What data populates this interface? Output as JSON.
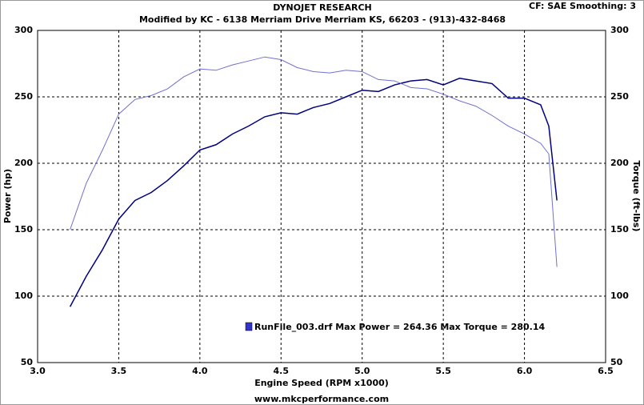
{
  "chart_data": {
    "type": "line",
    "title": "DYNOJET RESEARCH",
    "subtitle": "Modified by KC - 6138 Merriam Drive Merriam KS,  66203 - (913)-432-8468",
    "corner_note": "CF: SAE  Smoothing: 3",
    "x_label": "Engine Speed (RPM x1000)",
    "y_label": "Power (hp)",
    "y2_label": "Torque (ft-lbs)",
    "footer": "www.mkcperformance.com",
    "legend_text": "RunFile_003.drf Max Power = 264.36     Max Torque = 280.14",
    "legend_color": "#3333cc",
    "x": [
      3.2,
      3.3,
      3.4,
      3.5,
      3.6,
      3.7,
      3.8,
      3.9,
      4.0,
      4.1,
      4.2,
      4.3,
      4.4,
      4.5,
      4.6,
      4.7,
      4.8,
      4.9,
      5.0,
      5.1,
      5.2,
      5.3,
      5.4,
      5.5,
      5.6,
      5.7,
      5.8,
      5.9,
      6.0,
      6.1,
      6.15,
      6.2
    ],
    "series": [
      {
        "color": "#000080",
        "values": [
          92,
          115,
          135,
          158,
          172,
          178,
          187,
          198,
          210,
          214,
          222,
          228,
          235,
          238,
          237,
          242,
          245,
          250,
          255,
          254,
          259,
          262,
          263,
          259,
          264,
          262,
          260,
          249,
          249,
          244,
          228,
          172
        ]
      },
      {
        "color": "#7070d0",
        "axis": "y2",
        "values": [
          150,
          185,
          210,
          237,
          248,
          251,
          256,
          265,
          271,
          270,
          274,
          277,
          280,
          278,
          272,
          269,
          268,
          270,
          269,
          263,
          262,
          257,
          256,
          252,
          247,
          243,
          236,
          228,
          222,
          215,
          207,
          122
        ]
      }
    ],
    "xlim": [
      3.0,
      6.5
    ],
    "xticks": [
      {
        "value": 3.0,
        "label": "3.0"
      },
      3.5,
      {
        "value": 4.0,
        "label": "4.0"
      },
      4.5,
      {
        "value": 5.0,
        "label": "5.0"
      },
      5.5,
      {
        "value": 6.0,
        "label": "6.0"
      },
      6.5
    ],
    "ylim": [
      50,
      300
    ],
    "yticks": [
      50,
      100,
      150,
      200,
      250,
      300
    ],
    "y2lim": [
      50,
      300
    ],
    "y2ticks": [
      50,
      100,
      150,
      200,
      250,
      300
    ],
    "grid": true
  }
}
